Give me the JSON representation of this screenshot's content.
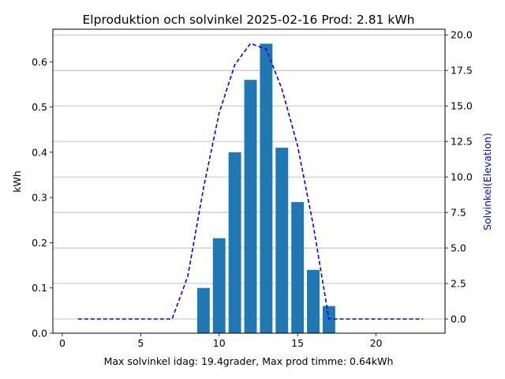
{
  "chart_data": {
    "type": "bar",
    "title": "Elproduktion och solvinkel 2025-02-16 Prod: 2.81 kWh",
    "xlabel": "Max solvinkel idag: 19.4grader, Max prod timme: 0.64kWh",
    "ylabel": "kWh",
    "y2label": "Solvinkel(Elevation)",
    "xlim": [
      -0.6,
      24.4
    ],
    "ylim": [
      0,
      0.672
    ],
    "y2lim": [
      -1.0,
      20.4
    ],
    "xticks": [
      0,
      5,
      10,
      15,
      20
    ],
    "yticks": [
      0.0,
      0.1,
      0.2,
      0.3,
      0.4,
      0.5,
      0.6
    ],
    "y2ticks": [
      0.0,
      2.5,
      5.0,
      7.5,
      10.0,
      12.5,
      15.0,
      17.5,
      20.0
    ],
    "grid_y2": true,
    "bar_color": "#1f77b4",
    "line_color": "#0000ff",
    "bars": {
      "name": "kWh",
      "x": [
        9,
        10,
        11,
        12,
        13,
        14,
        15,
        16,
        17
      ],
      "values": [
        0.1,
        0.21,
        0.4,
        0.56,
        0.64,
        0.41,
        0.29,
        0.14,
        0.06
      ]
    },
    "line": {
      "name": "Solvinkel",
      "x": [
        1,
        2,
        3,
        4,
        5,
        6,
        7,
        8,
        9,
        10,
        11,
        12,
        13,
        14,
        15,
        16,
        17,
        18,
        19,
        20,
        21,
        22,
        23
      ],
      "values": [
        0,
        0,
        0,
        0,
        0,
        0,
        0,
        3.0,
        9.2,
        14.5,
        17.9,
        19.4,
        19.0,
        16.2,
        12.2,
        6.6,
        0,
        0,
        0,
        0,
        0,
        0,
        0
      ]
    }
  }
}
